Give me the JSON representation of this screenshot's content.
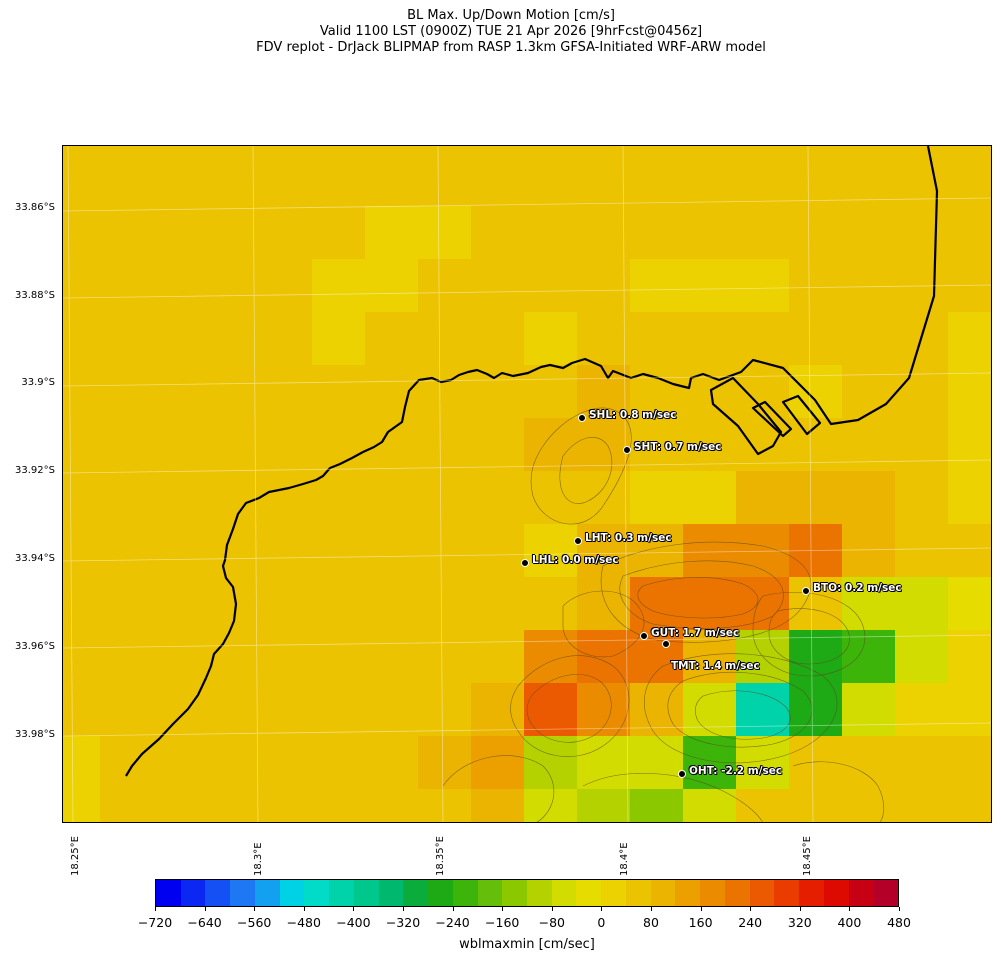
{
  "title": {
    "line1": "BL Max. Up/Down Motion [cm/s]",
    "line2": "Valid 1100 LST (0900Z) TUE 21 Apr 2026 [9hrFcst@0456z]",
    "line3": "FDV replot - DrJack BLIPMAP from RASP 1.3km GFSA-Initiated WRF-ARW model"
  },
  "latitude_labels": [
    "33.86°S",
    "33.88°S",
    "33.9°S",
    "33.92°S",
    "33.94°S",
    "33.96°S",
    "33.98°S"
  ],
  "longitude_labels": [
    "18.25°E",
    "18.3°E",
    "18.35°E",
    "18.4°E",
    "18.45°E"
  ],
  "stations": [
    {
      "name": "SHL",
      "value_label": "SHL: 0.8 m/sec",
      "value": 0.8
    },
    {
      "name": "SHT",
      "value_label": "SHT: 0.7 m/sec",
      "value": 0.7
    },
    {
      "name": "LHT",
      "value_label": "LHT: 0.3 m/sec",
      "value": 0.3
    },
    {
      "name": "LHL",
      "value_label": "LHL: 0.0 m/sec",
      "value": 0.0
    },
    {
      "name": "BTO",
      "value_label": "BTO: 0.2 m/sec",
      "value": 0.2
    },
    {
      "name": "GUT",
      "value_label": "GUT: 1.7 m/sec",
      "value": 1.7
    },
    {
      "name": "TMT",
      "value_label": "TMT: 1.4 m/sec",
      "value": 1.4
    },
    {
      "name": "OHT",
      "value_label": "OHT: -2.2 m/sec",
      "value": -2.2
    }
  ],
  "colorbar": {
    "label": "wblmaxmin [cm/sec]",
    "min": -720,
    "max": 480,
    "step": 40,
    "tick_labels": [
      "−720",
      "−640",
      "−560",
      "−480",
      "−400",
      "−320",
      "−240",
      "−160",
      "−80",
      "0",
      "80",
      "160",
      "240",
      "320",
      "400",
      "480"
    ],
    "colors": [
      "#0000f0",
      "#0a28f2",
      "#1450f4",
      "#1e78f4",
      "#14a0f0",
      "#00d2e6",
      "#00dcc8",
      "#00d2aa",
      "#00c88c",
      "#00b96e",
      "#0aad3c",
      "#1eaa14",
      "#3cb40a",
      "#64be0a",
      "#8cc800",
      "#b4d200",
      "#d2dc00",
      "#e6dc00",
      "#ebd200",
      "#ebc300",
      "#ebb400",
      "#eba000",
      "#eb8c00",
      "#eb7300",
      "#eb5a00",
      "#eb3c00",
      "#e61e00",
      "#dc0a00",
      "#c80014",
      "#b40028"
    ]
  },
  "grid_values": [
    [
      40,
      40,
      40,
      40,
      40,
      40,
      40,
      40,
      40,
      40,
      40,
      40,
      40,
      40,
      40,
      40,
      40,
      40
    ],
    [
      40,
      40,
      40,
      40,
      40,
      40,
      20,
      20,
      40,
      40,
      40,
      40,
      40,
      40,
      40,
      40,
      40,
      40
    ],
    [
      40,
      40,
      40,
      40,
      40,
      20,
      20,
      40,
      40,
      40,
      40,
      20,
      20,
      20,
      40,
      40,
      40,
      40
    ],
    [
      40,
      40,
      40,
      40,
      40,
      20,
      40,
      40,
      40,
      20,
      40,
      40,
      40,
      40,
      40,
      40,
      40,
      20
    ],
    [
      40,
      40,
      40,
      40,
      40,
      40,
      40,
      40,
      40,
      40,
      80,
      40,
      40,
      40,
      20,
      40,
      40,
      20
    ],
    [
      40,
      40,
      40,
      40,
      40,
      40,
      40,
      40,
      40,
      80,
      80,
      40,
      40,
      40,
      40,
      40,
      40,
      20
    ],
    [
      40,
      40,
      40,
      40,
      40,
      40,
      40,
      40,
      40,
      40,
      40,
      20,
      20,
      80,
      80,
      80,
      40,
      20
    ],
    [
      40,
      40,
      40,
      40,
      40,
      40,
      40,
      40,
      40,
      20,
      80,
      80,
      160,
      160,
      200,
      80,
      40,
      40
    ],
    [
      40,
      40,
      40,
      40,
      40,
      40,
      40,
      40,
      40,
      40,
      80,
      200,
      200,
      200,
      40,
      -80,
      -80,
      -40
    ],
    [
      40,
      40,
      40,
      40,
      40,
      40,
      40,
      40,
      40,
      160,
      200,
      200,
      80,
      -120,
      -280,
      -240,
      -80,
      0
    ],
    [
      40,
      40,
      40,
      40,
      40,
      40,
      40,
      40,
      80,
      240,
      160,
      80,
      -80,
      -440,
      -280,
      -80,
      20,
      20
    ],
    [
      20,
      40,
      40,
      40,
      40,
      40,
      40,
      80,
      120,
      -120,
      -80,
      -80,
      -240,
      -80,
      40,
      40,
      40,
      40
    ],
    [
      20,
      40,
      40,
      40,
      40,
      40,
      40,
      40,
      80,
      -80,
      -120,
      -160,
      -80,
      40,
      40,
      40,
      40,
      40
    ]
  ]
}
